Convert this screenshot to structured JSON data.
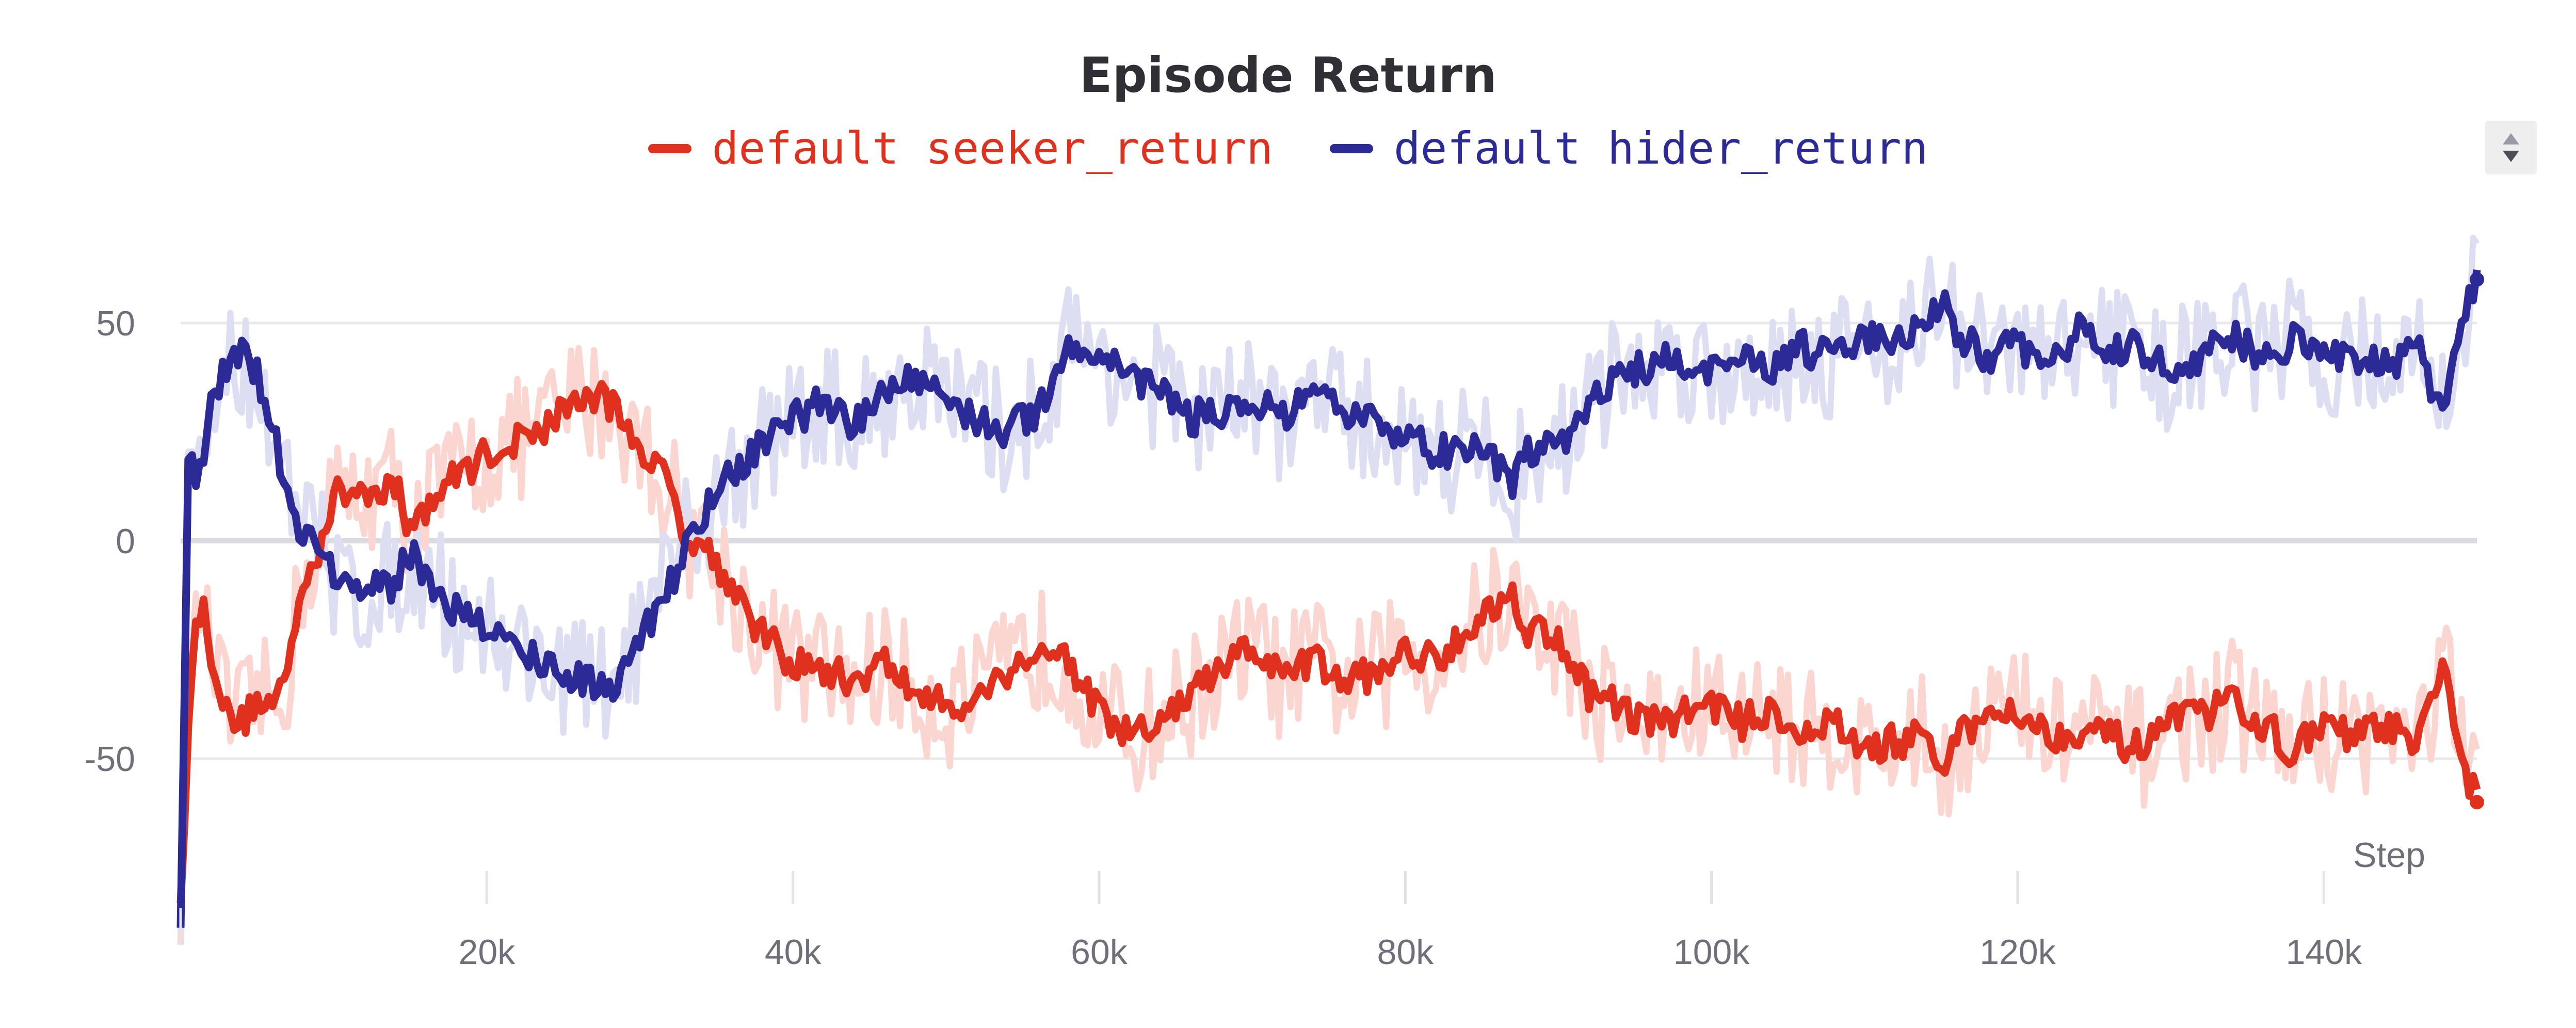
{
  "chart_data": {
    "type": "line",
    "title": "Episode Return",
    "xlabel": "Step",
    "ylabel": "",
    "xlim": [
      0,
      150000
    ],
    "ylim": [
      -90,
      80
    ],
    "x_ticks": [
      20000,
      40000,
      60000,
      80000,
      100000,
      120000,
      140000
    ],
    "x_tick_labels": [
      "20k",
      "40k",
      "60k",
      "80k",
      "100k",
      "120k",
      "140k"
    ],
    "y_ticks": [
      50,
      0,
      -50
    ],
    "y_tick_labels": [
      "50",
      "0",
      "-50"
    ],
    "grid": true,
    "legend_position": "top-center",
    "x": [
      0,
      500,
      1000,
      1500,
      2000,
      3000,
      4000,
      5000,
      6000,
      7000,
      8000,
      9000,
      10000,
      12000,
      14000,
      15000,
      16000,
      18000,
      20000,
      22000,
      24000,
      26000,
      28000,
      30000,
      32000,
      33000,
      34000,
      36000,
      38000,
      40000,
      42000,
      44000,
      46000,
      48000,
      50000,
      52000,
      54000,
      56000,
      58000,
      60000,
      62000,
      64000,
      66000,
      68000,
      70000,
      72000,
      74000,
      76000,
      78000,
      80000,
      82000,
      84000,
      86000,
      87000,
      88000,
      90000,
      92000,
      94000,
      96000,
      98000,
      100000,
      102000,
      104000,
      106000,
      108000,
      110000,
      112000,
      114000,
      115000,
      116000,
      118000,
      120000,
      122000,
      124000,
      126000,
      128000,
      130000,
      132000,
      134000,
      136000,
      138000,
      140000,
      142000,
      144000,
      146000,
      147000,
      148000,
      149000,
      150000
    ],
    "series": [
      {
        "name": "default seeker_return",
        "color": "#e0311e",
        "band_color": "#fbd6d1",
        "values": [
          -85,
          -40,
          -20,
          -15,
          -25,
          -40,
          -42,
          -36,
          -38,
          -30,
          -8,
          -2,
          10,
          12,
          13,
          2,
          8,
          15,
          20,
          23,
          27,
          33,
          32,
          22,
          12,
          2,
          0,
          -10,
          -22,
          -28,
          -30,
          -32,
          -28,
          -35,
          -38,
          -36,
          -30,
          -25,
          -27,
          -40,
          -45,
          -42,
          -35,
          -30,
          -24,
          -32,
          -27,
          -33,
          -30,
          -26,
          -27,
          -20,
          -15,
          -12,
          -20,
          -22,
          -35,
          -38,
          -42,
          -40,
          -37,
          -42,
          -38,
          -45,
          -42,
          -48,
          -46,
          -45,
          -53,
          -46,
          -40,
          -38,
          -45,
          -43,
          -45,
          -48,
          -42,
          -40,
          -37,
          -42,
          -48,
          -43,
          -45,
          -42,
          -48,
          -38,
          -28,
          -50,
          -60
        ]
      },
      {
        "name": "default hider_return",
        "color": "#2c2a96",
        "band_color": "#dedef3",
        "values": [
          -88,
          20,
          15,
          18,
          30,
          40,
          42,
          38,
          28,
          10,
          2,
          0,
          -8,
          -12,
          -10,
          -2,
          -8,
          -16,
          -20,
          -25,
          -28,
          -32,
          -34,
          -22,
          -10,
          0,
          5,
          15,
          22,
          28,
          32,
          26,
          34,
          38,
          33,
          28,
          25,
          30,
          45,
          43,
          38,
          35,
          28,
          30,
          32,
          28,
          33,
          29,
          27,
          25,
          20,
          22,
          18,
          12,
          20,
          22,
          32,
          38,
          40,
          42,
          38,
          42,
          40,
          44,
          42,
          47,
          45,
          52,
          55,
          48,
          42,
          45,
          40,
          48,
          44,
          45,
          38,
          43,
          47,
          42,
          46,
          42,
          43,
          40,
          45,
          35,
          32,
          50,
          60
        ]
      }
    ]
  }
}
